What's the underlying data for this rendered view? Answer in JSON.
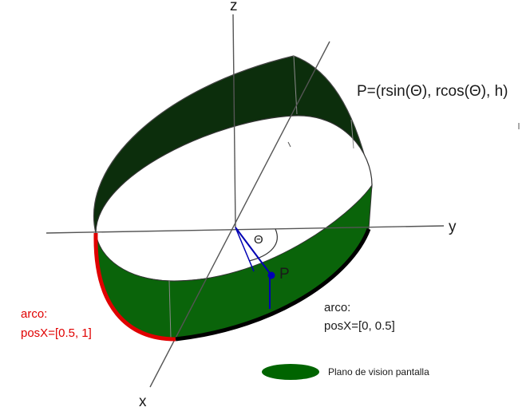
{
  "axes": {
    "z_label": "z",
    "y_label": "y",
    "x_label": "x"
  },
  "formula": "P=(rsin(Θ), rcos(Θ), h)",
  "angle_label": "Θ",
  "point_label": "P",
  "arc_right": {
    "line1": "arco:",
    "line2": "posX=[0, 0.5]",
    "color": "#000000"
  },
  "arc_left": {
    "line1": "arco:",
    "line2": "posX=[0.5, 1]",
    "color": "#e00000"
  },
  "legend": {
    "label": "Plano de vision pantalla",
    "color": "#006400"
  },
  "colors": {
    "inner_wall": "#0c2e0c",
    "outer_wall": "#0a640a",
    "marker": "#0000b4"
  }
}
